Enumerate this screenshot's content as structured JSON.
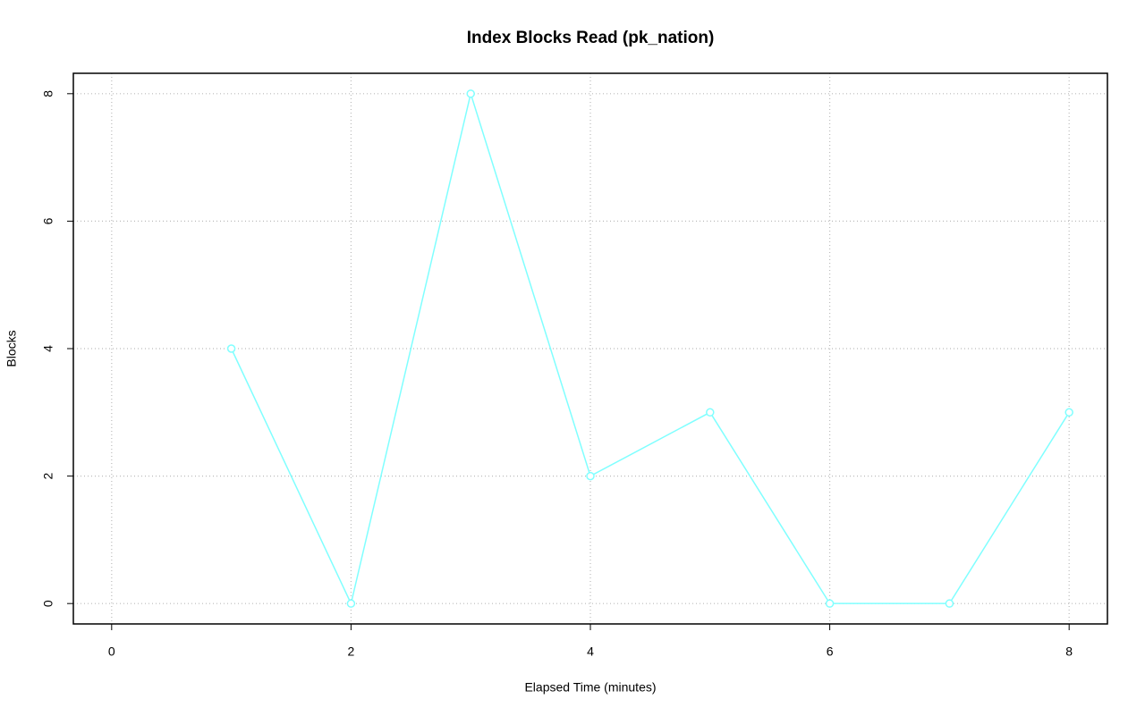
{
  "chart_data": {
    "type": "line",
    "title": "Index Blocks Read (pk_nation)",
    "x_label": "Elapsed Time (minutes)",
    "y_label": "Blocks",
    "x": [
      1,
      2,
      3,
      4,
      5,
      6,
      7,
      8
    ],
    "series": [
      {
        "name": "pk_nation",
        "color": "#80ffff",
        "values": [
          4,
          0,
          8,
          2,
          3,
          0,
          0,
          3
        ]
      }
    ],
    "xlim": [
      -0.32,
      8.32
    ],
    "xticks": [
      0,
      2,
      4,
      6,
      8
    ],
    "ylim": [
      -0.32,
      8.32
    ],
    "yticks": [
      0,
      2,
      4,
      6,
      8
    ],
    "grid": true
  }
}
